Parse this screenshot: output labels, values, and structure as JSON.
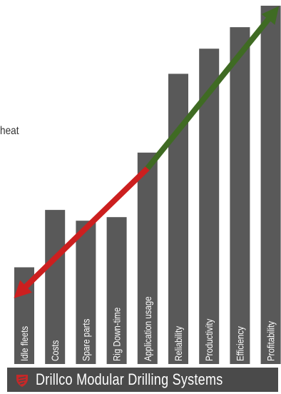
{
  "stray_text": "heat",
  "chart_data": {
    "type": "bar",
    "categories": [
      "Idle fleets",
      "Costs",
      "Spare parts",
      "Rig Down-time",
      "Application usage",
      "Reliability",
      "Productivity",
      "Efficiency",
      "Profitability"
    ],
    "values": [
      27,
      43,
      40,
      41,
      59,
      81,
      88,
      94,
      100
    ],
    "ylim": [
      0,
      100
    ],
    "bar_color": "#595959",
    "trend": {
      "type": "line",
      "from_category": "Idle fleets",
      "to_category": "Profitability",
      "colors": [
        "#cc1f1f",
        "#3f6b23"
      ],
      "shift_category": "Application usage"
    },
    "grid": false
  },
  "footer": {
    "text": "Drillco Modular Drilling Systems",
    "logo": "drillco-logo-icon",
    "logo_color": "#c62828",
    "background": "#4a4a4a"
  }
}
